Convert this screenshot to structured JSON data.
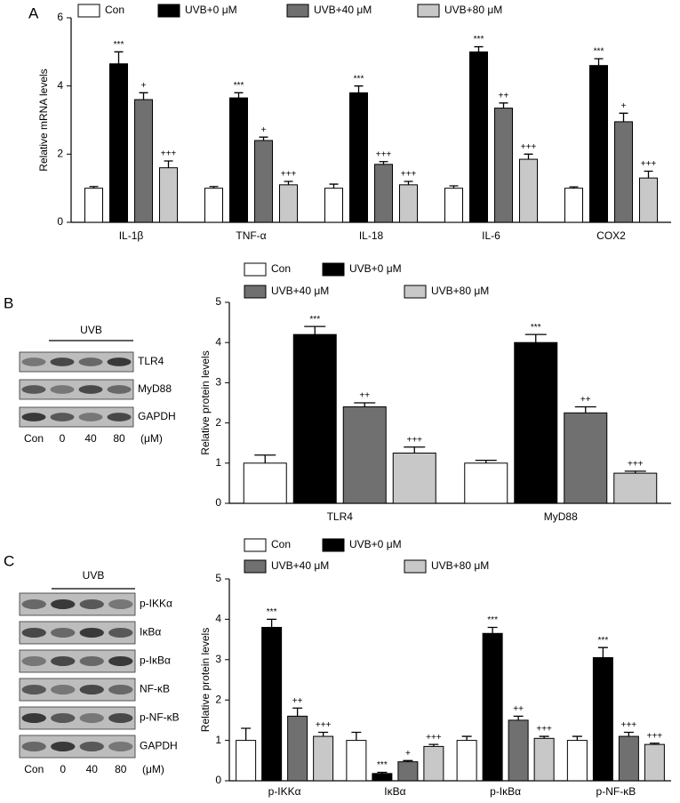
{
  "panel_labels": [
    "A",
    "B",
    "C"
  ],
  "chart_data": [
    {
      "type": "bar",
      "ylabel": "Relative mRNA levels",
      "categories": [
        "IL-1β",
        "TNF-α",
        "IL-18",
        "IL-6",
        "COX2"
      ],
      "ylim": [
        0,
        6
      ],
      "yticks": [
        0,
        2,
        4,
        6
      ],
      "series": [
        {
          "name": "Con",
          "color": "#ffffff",
          "values": [
            1,
            1,
            1,
            1,
            1
          ],
          "errors": [
            0.05,
            0.05,
            0.12,
            0.07,
            0.04
          ],
          "annotations": [
            null,
            null,
            null,
            null,
            null
          ]
        },
        {
          "name": "UVB+0 μM",
          "color": "#000000",
          "values": [
            4.65,
            3.65,
            3.8,
            5.0,
            4.6
          ],
          "errors": [
            0.35,
            0.15,
            0.2,
            0.15,
            0.2
          ],
          "annotations": [
            "***",
            "***",
            "***",
            "***",
            "***"
          ]
        },
        {
          "name": "UVB+40 μM",
          "color": "#707070",
          "values": [
            3.6,
            2.4,
            1.7,
            3.35,
            2.95
          ],
          "errors": [
            0.2,
            0.1,
            0.08,
            0.15,
            0.25
          ],
          "annotations": [
            "+",
            "+",
            "+++",
            "++",
            "+"
          ]
        },
        {
          "name": "UVB+80 μM",
          "color": "#c8c8c8",
          "values": [
            1.6,
            1.1,
            1.1,
            1.85,
            1.3
          ],
          "errors": [
            0.2,
            0.1,
            0.1,
            0.15,
            0.2
          ],
          "annotations": [
            "+++",
            "+++",
            "+++",
            "+++",
            "+++"
          ]
        }
      ]
    },
    {
      "type": "bar",
      "ylabel": "Relative protein levels",
      "categories": [
        "TLR4",
        "MyD88"
      ],
      "ylim": [
        0,
        5
      ],
      "yticks": [
        0,
        1,
        2,
        3,
        4,
        5
      ],
      "series": [
        {
          "name": "Con",
          "color": "#ffffff",
          "values": [
            1.0,
            1.0
          ],
          "errors": [
            0.2,
            0.07
          ],
          "annotations": [
            null,
            null
          ]
        },
        {
          "name": "UVB+0 μM",
          "color": "#000000",
          "values": [
            4.2,
            4.0
          ],
          "errors": [
            0.2,
            0.2
          ],
          "annotations": [
            "***",
            "***"
          ]
        },
        {
          "name": "UVB+40 μM",
          "color": "#707070",
          "values": [
            2.4,
            2.25
          ],
          "errors": [
            0.1,
            0.15
          ],
          "annotations": [
            "++",
            "++"
          ]
        },
        {
          "name": "UVB+80 μM",
          "color": "#c8c8c8",
          "values": [
            1.25,
            0.75
          ],
          "errors": [
            0.15,
            0.05
          ],
          "annotations": [
            "+++",
            "+++"
          ]
        }
      ]
    },
    {
      "type": "bar",
      "ylabel": "Relative protein levels",
      "categories": [
        "p-IKKα",
        "IκBα",
        "p-IκBα",
        "p-NF-κB"
      ],
      "ylim": [
        0,
        5
      ],
      "yticks": [
        0,
        1,
        2,
        3,
        4,
        5
      ],
      "series": [
        {
          "name": "Con",
          "color": "#ffffff",
          "values": [
            1.0,
            1.0,
            1.0,
            1.0
          ],
          "errors": [
            0.3,
            0.2,
            0.1,
            0.1
          ],
          "annotations": [
            null,
            null,
            null,
            null
          ]
        },
        {
          "name": "UVB+0 μM",
          "color": "#000000",
          "values": [
            3.8,
            0.18,
            3.65,
            3.05
          ],
          "errors": [
            0.2,
            0.03,
            0.15,
            0.25
          ],
          "annotations": [
            "***",
            "***",
            "***",
            "***"
          ]
        },
        {
          "name": "UVB+40 μM",
          "color": "#707070",
          "values": [
            1.6,
            0.47,
            1.5,
            1.1
          ],
          "errors": [
            0.2,
            0.03,
            0.1,
            0.1
          ],
          "annotations": [
            "++",
            "+",
            "++",
            "+++"
          ]
        },
        {
          "name": "UVB+80 μM",
          "color": "#c8c8c8",
          "values": [
            1.1,
            0.85,
            1.05,
            0.9
          ],
          "errors": [
            0.1,
            0.05,
            0.05,
            0.03
          ],
          "annotations": [
            "+++",
            "+++",
            "+++",
            "+++"
          ]
        }
      ]
    }
  ],
  "blots": [
    {
      "header": "UVB",
      "rows": [
        "TLR4",
        "MyD88",
        "GAPDH"
      ],
      "lanes": [
        "Con",
        "0",
        "40",
        "80"
      ],
      "unit": "(μM)"
    },
    {
      "header": "UVB",
      "rows": [
        "p-IKKα",
        "IκBα",
        "p-IκBα",
        "NF-κB",
        "p-NF-κB",
        "GAPDH"
      ],
      "lanes": [
        "Con",
        "0",
        "40",
        "80"
      ],
      "unit": "(μM)"
    }
  ]
}
